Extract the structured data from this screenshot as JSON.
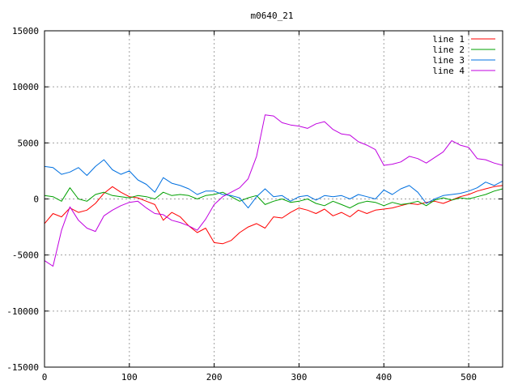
{
  "chart_data": {
    "type": "line",
    "title": "m0640_21",
    "xlabel": "",
    "ylabel": "",
    "xlim": [
      0,
      540
    ],
    "ylim": [
      -15000,
      15000
    ],
    "grid": true,
    "legend_position": "top-right",
    "x_ticks": [
      0,
      100,
      200,
      300,
      400,
      500
    ],
    "y_ticks": [
      -15000,
      -10000,
      -5000,
      0,
      5000,
      10000,
      15000
    ],
    "x": [
      0,
      10,
      20,
      30,
      40,
      50,
      60,
      70,
      80,
      90,
      100,
      110,
      120,
      130,
      140,
      150,
      160,
      170,
      180,
      190,
      200,
      210,
      220,
      230,
      240,
      250,
      260,
      270,
      280,
      290,
      300,
      310,
      320,
      330,
      340,
      350,
      360,
      370,
      380,
      390,
      400,
      410,
      420,
      430,
      440,
      450,
      460,
      470,
      480,
      490,
      500,
      510,
      520,
      530,
      540
    ],
    "series": [
      {
        "name": "line 1",
        "color": "#ff0000",
        "values": [
          -2200,
          -1300,
          -1600,
          -800,
          -1200,
          -1000,
          -400,
          500,
          1100,
          600,
          200,
          100,
          -200,
          -500,
          -1900,
          -1200,
          -1600,
          -2400,
          -3000,
          -2600,
          -3900,
          -4000,
          -3700,
          -3000,
          -2500,
          -2200,
          -2600,
          -1600,
          -1700,
          -1200,
          -800,
          -1000,
          -1300,
          -900,
          -1500,
          -1200,
          -1600,
          -1000,
          -1300,
          -1000,
          -900,
          -800,
          -600,
          -400,
          -500,
          -300,
          -200,
          -400,
          -100,
          200,
          400,
          700,
          900,
          1100,
          1200
        ]
      },
      {
        "name": "line 2",
        "color": "#00a000",
        "values": [
          300,
          200,
          -200,
          1000,
          0,
          -200,
          400,
          600,
          300,
          200,
          100,
          300,
          200,
          0,
          600,
          300,
          400,
          300,
          0,
          300,
          400,
          600,
          200,
          -200,
          100,
          300,
          -500,
          -200,
          0,
          -300,
          -200,
          0,
          -400,
          -600,
          -200,
          -500,
          -800,
          -400,
          -200,
          -300,
          -600,
          -300,
          -500,
          -400,
          -200,
          -600,
          -100,
          100,
          -100,
          100,
          0,
          200,
          400,
          700,
          900
        ]
      },
      {
        "name": "line 3",
        "color": "#0070e0",
        "values": [
          2900,
          2800,
          2200,
          2400,
          2800,
          2100,
          2900,
          3500,
          2600,
          2200,
          2500,
          1700,
          1300,
          600,
          1900,
          1400,
          1200,
          900,
          400,
          700,
          700,
          400,
          300,
          100,
          -800,
          200,
          900,
          200,
          300,
          -200,
          200,
          300,
          -100,
          300,
          200,
          300,
          0,
          400,
          200,
          0,
          800,
          400,
          900,
          1200,
          600,
          -400,
          0,
          300,
          400,
          500,
          700,
          1000,
          1500,
          1200,
          1600
        ]
      },
      {
        "name": "line 4",
        "color": "#c000e0",
        "values": [
          -5500,
          -6000,
          -2800,
          -700,
          -1900,
          -2600,
          -2900,
          -1500,
          -1000,
          -600,
          -300,
          -200,
          -800,
          -1300,
          -1400,
          -1900,
          -2100,
          -2400,
          -2800,
          -1800,
          -500,
          200,
          600,
          1000,
          1800,
          3800,
          7500,
          7400,
          6800,
          6600,
          6500,
          6300,
          6700,
          6900,
          6200,
          5800,
          5700,
          5100,
          4800,
          4400,
          3000,
          3100,
          3300,
          3800,
          3600,
          3200,
          3700,
          4200,
          5200,
          4800,
          4600,
          3600,
          3500,
          3200,
          3000
        ]
      }
    ]
  }
}
